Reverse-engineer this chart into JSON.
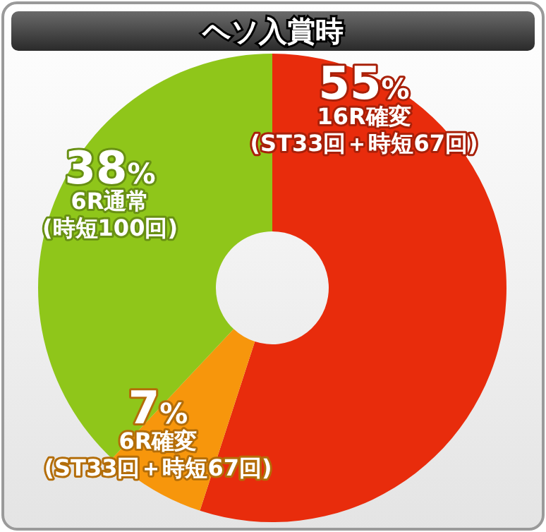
{
  "chart_data": {
    "type": "donut",
    "title": "ヘソ入賞時",
    "categories": [
      "16R確変 (ST33回＋時短67回)",
      "6R確変 (ST33回＋時短67回)",
      "6R通常 (時短100回)"
    ],
    "values": [
      55,
      7,
      38
    ],
    "value_labels": [
      "55%",
      "7%",
      "38%"
    ],
    "colors": [
      "#e82c0c",
      "#f7960c",
      "#8fc61a"
    ]
  }
}
